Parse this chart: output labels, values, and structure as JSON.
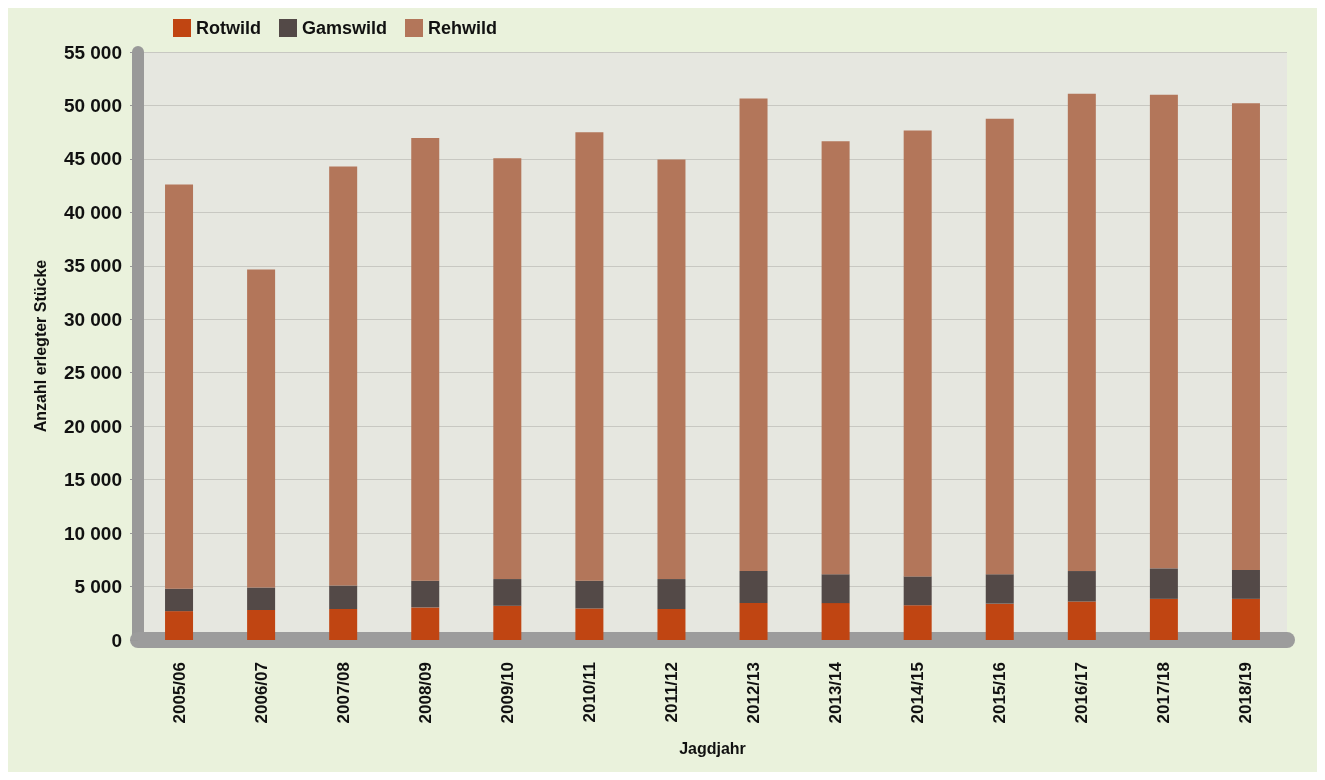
{
  "chart_data": {
    "type": "bar",
    "stacked": true,
    "xlabel": "Jagdjahr",
    "ylabel": "Anzahl erlegter Stücke",
    "categories": [
      "2005/06",
      "2006/07",
      "2007/08",
      "2008/09",
      "2009/10",
      "2010/11",
      "2011/12",
      "2012/13",
      "2013/14",
      "2014/15",
      "2015/16",
      "2016/17",
      "2017/18",
      "2018/19"
    ],
    "series": [
      {
        "name": "Rotwild",
        "color": "#c04512",
        "values": [
          2700,
          2800,
          2900,
          3050,
          3200,
          2950,
          2900,
          3450,
          3450,
          3250,
          3400,
          3600,
          3850,
          3850
        ]
      },
      {
        "name": "Gamswild",
        "color": "#534947",
        "values": [
          2100,
          2100,
          2200,
          2500,
          2500,
          2600,
          2800,
          3000,
          2700,
          2700,
          2750,
          2850,
          2850,
          2700
        ]
      },
      {
        "name": "Rehwild",
        "color": "#b3765a",
        "values": [
          37800,
          29750,
          39200,
          41400,
          39350,
          41950,
          39250,
          44200,
          40500,
          41700,
          42600,
          44650,
          44300,
          43650
        ]
      }
    ],
    "ylim": [
      0,
      55000
    ],
    "yticks": [
      0,
      {
        "value": 5000,
        "label": "5 000"
      },
      {
        "value": 10000,
        "label": "10 000"
      },
      {
        "value": 15000,
        "label": "15 000"
      },
      {
        "value": 20000,
        "label": "20 000"
      },
      {
        "value": 25000,
        "label": "25 000"
      },
      {
        "value": 30000,
        "label": "30 000"
      },
      {
        "value": 35000,
        "label": "35 000"
      },
      {
        "value": 40000,
        "label": "40 000"
      },
      {
        "value": 45000,
        "label": "45 000"
      },
      {
        "value": 50000,
        "label": "50 000"
      },
      {
        "value": 55000,
        "label": "55 000"
      }
    ],
    "grid": "y",
    "legend": "top left"
  }
}
